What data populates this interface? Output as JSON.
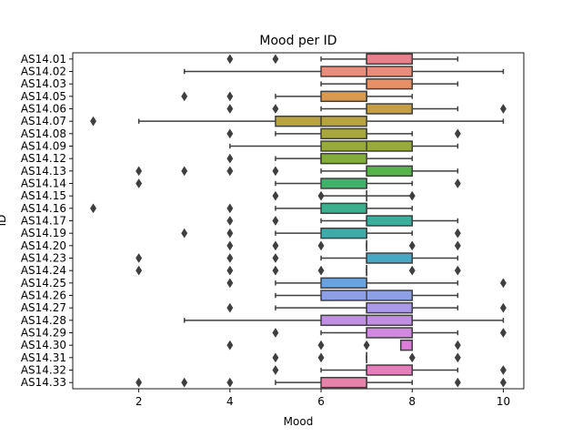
{
  "chart_data": {
    "type": "boxplot",
    "orientation": "horizontal",
    "title": "Mood per ID",
    "xlabel": "Mood",
    "ylabel": "ID",
    "xlim": [
      0.55,
      10.45
    ],
    "xticks": [
      2,
      4,
      6,
      8,
      10
    ],
    "grid": false,
    "legend": "none",
    "series": [
      {
        "id": "AS14.01",
        "color": "#e8818b",
        "q1": 7,
        "median": 7,
        "q3": 8,
        "whisker_low": 6,
        "whisker_high": 9,
        "outliers": [
          4,
          5
        ]
      },
      {
        "id": "AS14.02",
        "color": "#e88d7c",
        "q1": 6,
        "median": 7,
        "q3": 8,
        "whisker_low": 3,
        "whisker_high": 10,
        "outliers": []
      },
      {
        "id": "AS14.03",
        "color": "#e59067",
        "q1": 7,
        "median": 7,
        "q3": 8,
        "whisker_low": 6,
        "whisker_high": 9,
        "outliers": []
      },
      {
        "id": "AS14.05",
        "color": "#d99a4e",
        "q1": 6,
        "median": 7,
        "q3": 7,
        "whisker_low": 5,
        "whisker_high": 8,
        "outliers": [
          3,
          4
        ]
      },
      {
        "id": "AS14.06",
        "color": "#c69e3f",
        "q1": 7,
        "median": 7,
        "q3": 8,
        "whisker_low": 6,
        "whisker_high": 9,
        "outliers": [
          4,
          5,
          10
        ]
      },
      {
        "id": "AS14.07",
        "color": "#b9a33e",
        "q1": 5,
        "median": 6,
        "q3": 7,
        "whisker_low": 2,
        "whisker_high": 10,
        "outliers": [
          1
        ]
      },
      {
        "id": "AS14.08",
        "color": "#a8a73e",
        "q1": 6,
        "median": 7,
        "q3": 7,
        "whisker_low": 5,
        "whisker_high": 8,
        "outliers": [
          4,
          9
        ]
      },
      {
        "id": "AS14.09",
        "color": "#98aa3c",
        "q1": 6,
        "median": 7,
        "q3": 8,
        "whisker_low": 4,
        "whisker_high": 9,
        "outliers": []
      },
      {
        "id": "AS14.12",
        "color": "#82ad3b",
        "q1": 6,
        "median": 6,
        "q3": 7,
        "whisker_low": 5,
        "whisker_high": 8,
        "outliers": [
          4
        ]
      },
      {
        "id": "AS14.13",
        "color": "#56b44a",
        "q1": 7,
        "median": 7,
        "q3": 8,
        "whisker_low": 6,
        "whisker_high": 9,
        "outliers": [
          2,
          3,
          4,
          5
        ]
      },
      {
        "id": "AS14.14",
        "color": "#3db26a",
        "q1": 6,
        "median": 7,
        "q3": 7,
        "whisker_low": 5,
        "whisker_high": 8,
        "outliers": [
          2,
          9
        ]
      },
      {
        "id": "AS14.15",
        "color": "#3eb07e",
        "q1": 7,
        "median": 7,
        "q3": 7,
        "whisker_low": 6,
        "whisker_high": 8,
        "outliers": [
          5,
          6,
          8
        ]
      },
      {
        "id": "AS14.16",
        "color": "#3daf8e",
        "q1": 6,
        "median": 7,
        "q3": 7,
        "whisker_low": 5,
        "whisker_high": 8,
        "outliers": [
          1,
          4
        ]
      },
      {
        "id": "AS14.17",
        "color": "#3cad9b",
        "q1": 7,
        "median": 7,
        "q3": 8,
        "whisker_low": 6,
        "whisker_high": 9,
        "outliers": [
          4,
          5
        ]
      },
      {
        "id": "AS14.19",
        "color": "#3eaba8",
        "q1": 6,
        "median": 7,
        "q3": 7,
        "whisker_low": 5,
        "whisker_high": 8,
        "outliers": [
          3,
          4,
          9
        ]
      },
      {
        "id": "AS14.20",
        "color": "#40a9b4",
        "q1": 7,
        "median": 7,
        "q3": 7,
        "whisker_low": 7,
        "whisker_high": 7,
        "outliers": [
          4,
          5,
          6,
          8,
          9
        ]
      },
      {
        "id": "AS14.23",
        "color": "#46a8c4",
        "q1": 7,
        "median": 7,
        "q3": 8,
        "whisker_low": 6,
        "whisker_high": 9,
        "outliers": [
          2,
          4,
          5
        ]
      },
      {
        "id": "AS14.24",
        "color": "#51a6d2",
        "q1": 7,
        "median": 7,
        "q3": 7,
        "whisker_low": 7,
        "whisker_high": 7,
        "outliers": [
          2,
          4,
          5,
          6,
          8,
          9
        ]
      },
      {
        "id": "AS14.25",
        "color": "#69a2e0",
        "q1": 6,
        "median": 7,
        "q3": 7,
        "whisker_low": 5,
        "whisker_high": 9,
        "outliers": [
          4,
          10
        ]
      },
      {
        "id": "AS14.26",
        "color": "#8da0e6",
        "q1": 6,
        "median": 7,
        "q3": 8,
        "whisker_low": 5,
        "whisker_high": 9,
        "outliers": []
      },
      {
        "id": "AS14.27",
        "color": "#aa99e8",
        "q1": 7,
        "median": 7,
        "q3": 8,
        "whisker_low": 5,
        "whisker_high": 9,
        "outliers": [
          4,
          10
        ]
      },
      {
        "id": "AS14.28",
        "color": "#c08fe4",
        "q1": 6,
        "median": 7,
        "q3": 8,
        "whisker_low": 3,
        "whisker_high": 10,
        "outliers": []
      },
      {
        "id": "AS14.29",
        "color": "#d287e0",
        "q1": 7,
        "median": 7,
        "q3": 8,
        "whisker_low": 6,
        "whisker_high": 9,
        "outliers": [
          5,
          10
        ]
      },
      {
        "id": "AS14.30",
        "color": "#de7cdb",
        "q1": 7.75,
        "median": 8,
        "q3": 8,
        "whisker_low": 7.75,
        "whisker_high": 8,
        "outliers": [
          4,
          6,
          7,
          9
        ]
      },
      {
        "id": "AS14.31",
        "color": "#e37ccc",
        "q1": 7,
        "median": 7,
        "q3": 7,
        "whisker_low": 7,
        "whisker_high": 7,
        "outliers": [
          5,
          6,
          8,
          9
        ]
      },
      {
        "id": "AS14.32",
        "color": "#e47fbc",
        "q1": 7,
        "median": 7,
        "q3": 8,
        "whisker_low": 6,
        "whisker_high": 9,
        "outliers": [
          5,
          10
        ]
      },
      {
        "id": "AS14.33",
        "color": "#e583a8",
        "q1": 6,
        "median": 7,
        "q3": 7,
        "whisker_low": 5,
        "whisker_high": 8,
        "outliers": [
          2,
          3,
          4,
          9,
          10
        ]
      }
    ]
  }
}
